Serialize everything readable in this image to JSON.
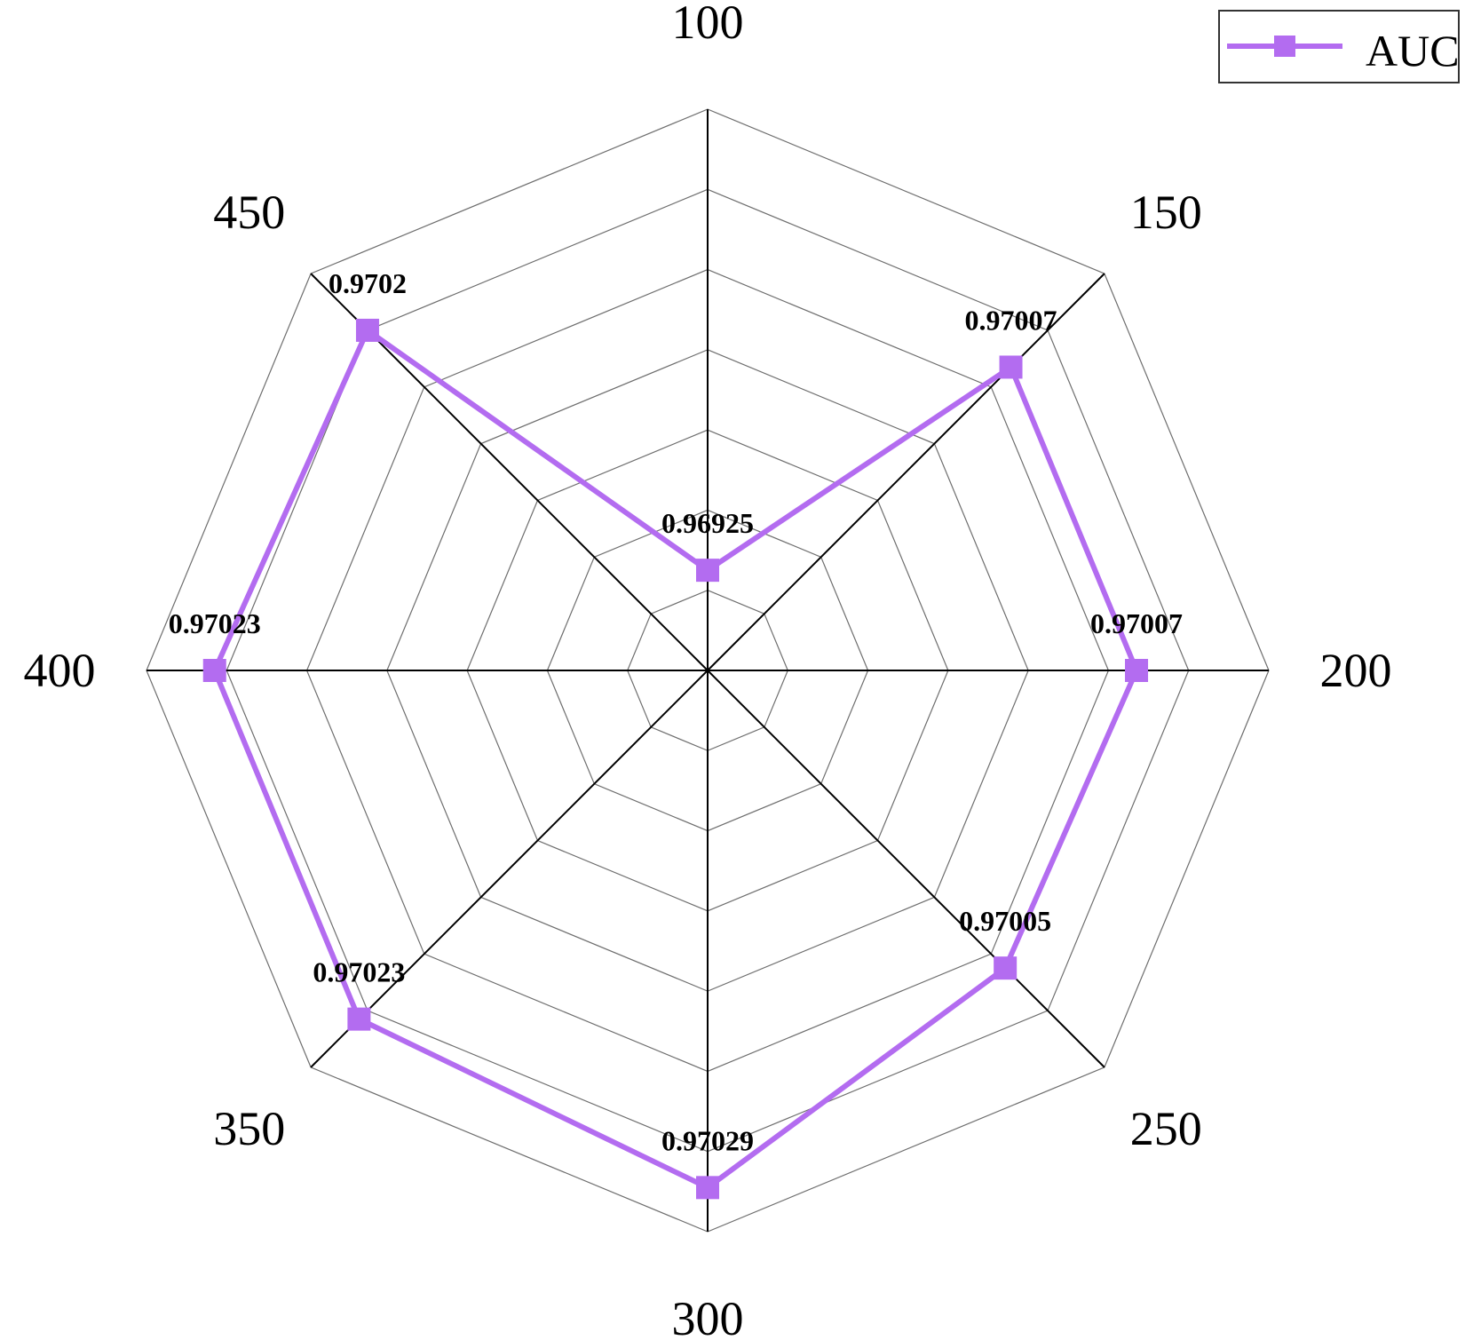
{
  "chart_data": {
    "type": "radar",
    "categories": [
      "100",
      "150",
      "200",
      "250",
      "300",
      "350",
      "400",
      "450"
    ],
    "series": [
      {
        "name": "AUC",
        "values": [
          0.96925,
          0.97007,
          0.97007,
          0.97005,
          0.97029,
          0.97023,
          0.97023,
          0.9702
        ],
        "data_labels": [
          "0.96925",
          "0.97007",
          "0.97007",
          "0.97005",
          "0.97029",
          "0.97023",
          "0.97023",
          "0.9702"
        ],
        "color": "#b36cf0"
      }
    ],
    "radial_range": [
      0.969,
      0.9704
    ],
    "rings": 7,
    "grid": true,
    "legend_position": "top-right",
    "title": "",
    "xlabel": "",
    "ylabel": ""
  }
}
